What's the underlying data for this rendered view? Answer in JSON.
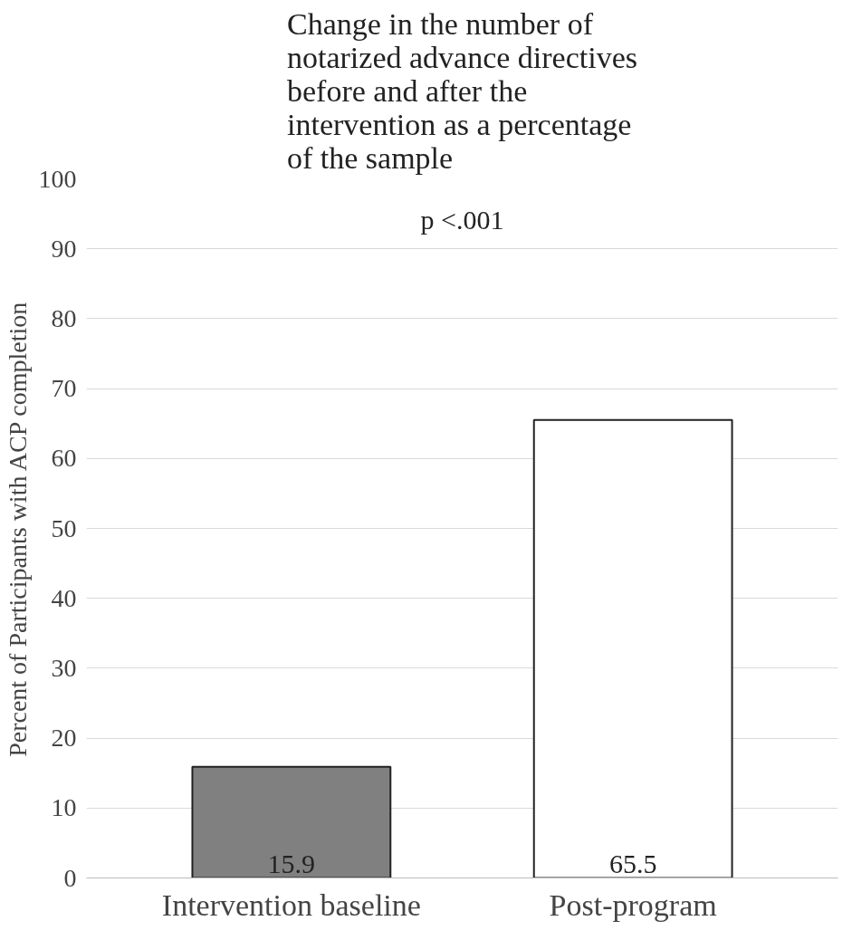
{
  "chart_data": {
    "type": "bar",
    "title": "Change in the number of notarized advance directives before and after the intervention as a percentage of the sample",
    "ylabel": "Percent of Participants with ACP completion",
    "categories": [
      "Intervention baseline",
      "Post-program"
    ],
    "values": [
      15.9,
      65.5
    ],
    "colors": [
      "#808080",
      "#ffffff"
    ],
    "ylim": [
      0,
      100
    ],
    "yticks": [
      0,
      10,
      20,
      30,
      40,
      50,
      60,
      70,
      80,
      90,
      100
    ],
    "grid": "y",
    "data_labels": true,
    "annotations": [
      "p <.001"
    ]
  }
}
